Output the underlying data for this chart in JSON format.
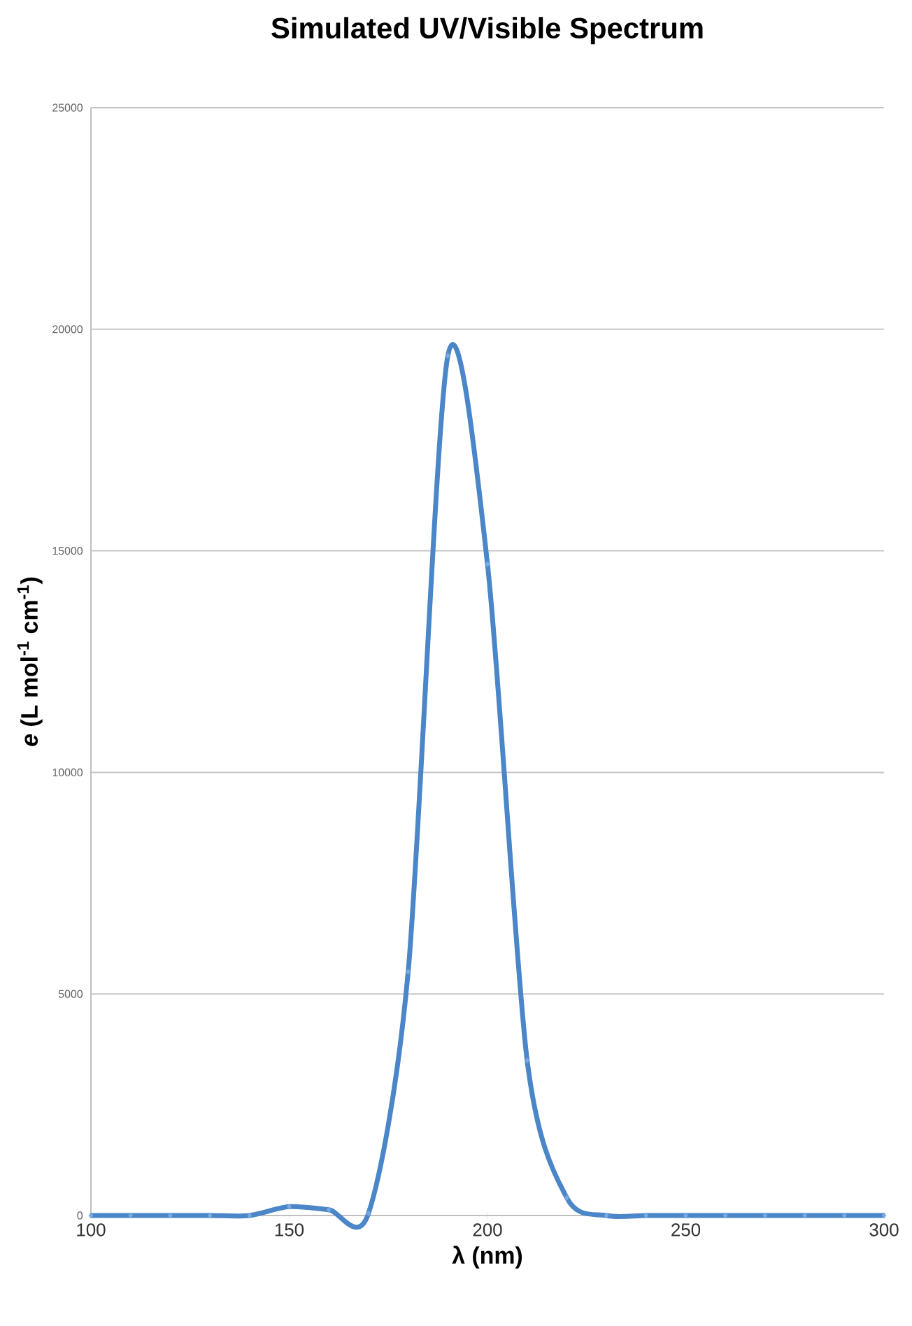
{
  "chart_data": {
    "type": "line",
    "title": "Simulated UV/Visible Spectrum",
    "xlabel": "λ (nm)",
    "ylabel": "*e* (L mol$^{-1}$ cm$^{-1}$)",
    "x": [
      100,
      110,
      120,
      130,
      140,
      150,
      160,
      170,
      180,
      190,
      200,
      210,
      220,
      230,
      240,
      250,
      260,
      270,
      280,
      290,
      300
    ],
    "series": [
      {
        "color": "#4a86c8",
        "values": [
          0,
          0,
          0,
          0,
          0,
          200,
          130,
          50,
          5500,
          19400,
          14700,
          3500,
          400,
          0,
          0,
          0,
          0,
          0,
          0,
          0,
          0
        ]
      }
    ],
    "xlim": [
      100,
      300
    ],
    "ylim": [
      0,
      25000
    ],
    "xticks": [
      100,
      150,
      200,
      250,
      300
    ],
    "yticks": [
      0,
      5000,
      10000,
      15000,
      20000,
      25000
    ],
    "grid": "y",
    "marker": "diamond",
    "line_style": "solid"
  }
}
